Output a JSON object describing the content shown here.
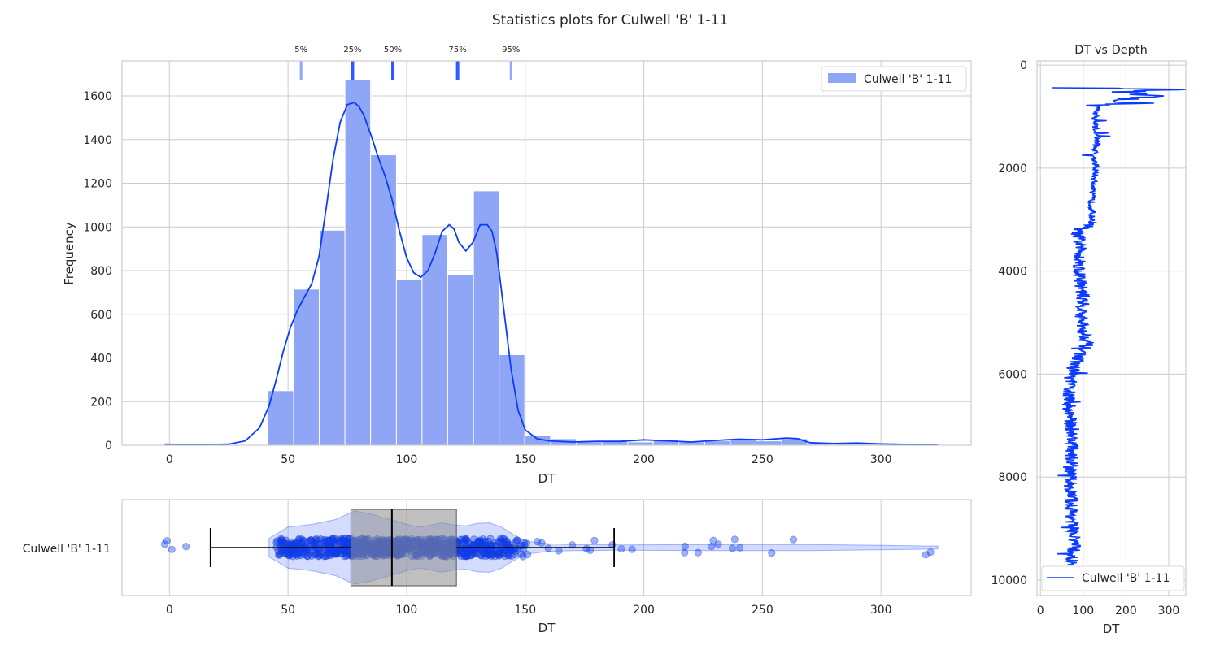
{
  "figure": {
    "title": "Statistics plots for Culwell 'B' 1-11"
  },
  "colors": {
    "main": "#0b3bff",
    "bar": "#8ea6f5",
    "grid": "#cccccc",
    "box": "#8c8c8c",
    "whisker": "#000000"
  },
  "chart_data": [
    {
      "type": "bar",
      "subtype": "histogram-with-kde",
      "xlabel": "DT",
      "ylabel": "Frequency",
      "xlim": [
        -20,
        338
      ],
      "ylim": [
        0,
        1760
      ],
      "xticks": [
        0,
        50,
        100,
        150,
        200,
        250,
        300
      ],
      "yticks": [
        0,
        200,
        400,
        600,
        800,
        1000,
        1200,
        1400,
        1600
      ],
      "legend": {
        "position": "top-right",
        "label": "Culwell 'B' 1-11"
      },
      "bins": [
        {
          "x0": 41.5,
          "x1": 52.4,
          "count": 250
        },
        {
          "x0": 52.4,
          "x1": 63.2,
          "count": 715
        },
        {
          "x0": 63.2,
          "x1": 74.0,
          "count": 985
        },
        {
          "x0": 74.0,
          "x1": 84.8,
          "count": 1675
        },
        {
          "x0": 84.8,
          "x1": 95.7,
          "count": 1330
        },
        {
          "x0": 95.7,
          "x1": 106.5,
          "count": 760
        },
        {
          "x0": 106.5,
          "x1": 117.3,
          "count": 965
        },
        {
          "x0": 117.3,
          "x1": 128.2,
          "count": 780
        },
        {
          "x0": 128.2,
          "x1": 139.0,
          "count": 1165
        },
        {
          "x0": 139.0,
          "x1": 149.8,
          "count": 415
        },
        {
          "x0": 149.8,
          "x1": 160.7,
          "count": 45
        },
        {
          "x0": 160.7,
          "x1": 171.5,
          "count": 30
        },
        {
          "x0": 171.5,
          "x1": 182.3,
          "count": 15
        },
        {
          "x0": 182.3,
          "x1": 193.2,
          "count": 20
        },
        {
          "x0": 193.2,
          "x1": 204.0,
          "count": 15
        },
        {
          "x0": 204.0,
          "x1": 214.8,
          "count": 25
        },
        {
          "x0": 214.8,
          "x1": 225.7,
          "count": 15
        },
        {
          "x0": 225.7,
          "x1": 236.5,
          "count": 20
        },
        {
          "x0": 236.5,
          "x1": 247.3,
          "count": 25
        },
        {
          "x0": 247.3,
          "x1": 258.2,
          "count": 20
        },
        {
          "x0": 258.2,
          "x1": 269.0,
          "count": 30
        },
        {
          "x0": 269.0,
          "x1": 279.8,
          "count": 5
        },
        {
          "x0": 279.8,
          "x1": 290.7,
          "count": 5
        },
        {
          "x0": 290.7,
          "x1": 301.5,
          "count": 5
        },
        {
          "x0": 301.5,
          "x1": 312.3,
          "count": 3
        },
        {
          "x0": 312.3,
          "x1": 323.2,
          "count": 3
        }
      ],
      "kde": {
        "x": [
          -2,
          10,
          25,
          32,
          38,
          42,
          45,
          48,
          51,
          54,
          57,
          60,
          63,
          66,
          69,
          72,
          75,
          78,
          80,
          82,
          85,
          88,
          91,
          94,
          97,
          100,
          103,
          106,
          109,
          112,
          115,
          118,
          120,
          122,
          125,
          128,
          131,
          134,
          136,
          138,
          141,
          144,
          147,
          150,
          155,
          160,
          170,
          180,
          190,
          200,
          210,
          220,
          230,
          240,
          250,
          260,
          265,
          270,
          280,
          290,
          300,
          310,
          324
        ],
        "y": [
          5,
          2,
          5,
          20,
          80,
          180,
          300,
          430,
          540,
          620,
          680,
          740,
          860,
          1080,
          1310,
          1480,
          1560,
          1570,
          1550,
          1510,
          1420,
          1320,
          1230,
          1120,
          980,
          860,
          790,
          770,
          800,
          880,
          980,
          1010,
          990,
          930,
          890,
          930,
          1010,
          1010,
          980,
          880,
          620,
          350,
          160,
          70,
          30,
          20,
          15,
          18,
          18,
          25,
          20,
          15,
          22,
          28,
          25,
          33,
          30,
          12,
          8,
          10,
          6,
          4,
          2
        ]
      },
      "percentiles": [
        {
          "label": "5%",
          "value": 55.5
        },
        {
          "label": "25%",
          "value": 77.2
        },
        {
          "label": "50%",
          "value": 94.2
        },
        {
          "label": "75%",
          "value": 121.5
        },
        {
          "label": "95%",
          "value": 144.0
        }
      ]
    },
    {
      "type": "scatter",
      "subtype": "box-violin-strip",
      "xlabel": "DT",
      "xlim": [
        -20,
        338
      ],
      "xticks": [
        0,
        50,
        100,
        150,
        200,
        250,
        300
      ],
      "category": "Culwell 'B' 1-11",
      "box": {
        "whisker_low": 17.3,
        "q1": 76.5,
        "median": 93.8,
        "q3": 121.0,
        "whisker_high": 187.5
      },
      "outliers_low": [
        -2,
        -1,
        1,
        7
      ],
      "violin_x": [
        42,
        50,
        60,
        70,
        78,
        85,
        90,
        95,
        100,
        105,
        110,
        115,
        120,
        125,
        130,
        135,
        140,
        145,
        150,
        160,
        170,
        190,
        230,
        270,
        300,
        324
      ],
      "violin_w": [
        0.25,
        0.55,
        0.62,
        0.75,
        0.98,
        0.9,
        0.8,
        0.72,
        0.62,
        0.55,
        0.6,
        0.66,
        0.6,
        0.58,
        0.65,
        0.66,
        0.55,
        0.35,
        0.18,
        0.1,
        0.08,
        0.07,
        0.08,
        0.08,
        0.06,
        0.04
      ]
    },
    {
      "type": "line",
      "title": "DT vs Depth",
      "xlabel": "DT",
      "xlim": [
        -8,
        340
      ],
      "ylim": [
        10300,
        -80
      ],
      "xticks": [
        0,
        100,
        200,
        300
      ],
      "yticks": [
        0,
        2000,
        4000,
        6000,
        8000,
        10000
      ],
      "legend": {
        "position": "bottom-right",
        "label": "Culwell 'B' 1-11"
      },
      "depth_range": [
        440,
        9700
      ],
      "profile": [
        {
          "depth": 440,
          "dt": 60
        },
        {
          "depth": 470,
          "dt": 320
        },
        {
          "depth": 520,
          "dt": 180
        },
        {
          "depth": 600,
          "dt": 250
        },
        {
          "depth": 680,
          "dt": 170
        },
        {
          "depth": 740,
          "dt": 230
        },
        {
          "depth": 780,
          "dt": 135
        },
        {
          "depth": 1000,
          "dt": 128
        },
        {
          "depth": 1500,
          "dt": 132
        },
        {
          "depth": 1740,
          "dt": 125
        },
        {
          "depth": 2000,
          "dt": 130
        },
        {
          "depth": 2500,
          "dt": 120
        },
        {
          "depth": 3100,
          "dt": 120
        },
        {
          "depth": 3200,
          "dt": 85
        },
        {
          "depth": 3600,
          "dt": 95
        },
        {
          "depth": 4000,
          "dt": 90
        },
        {
          "depth": 4500,
          "dt": 100
        },
        {
          "depth": 5000,
          "dt": 95
        },
        {
          "depth": 5400,
          "dt": 110
        },
        {
          "depth": 5800,
          "dt": 80
        },
        {
          "depth": 6100,
          "dt": 70
        },
        {
          "depth": 6600,
          "dt": 65
        },
        {
          "depth": 7000,
          "dt": 72
        },
        {
          "depth": 7500,
          "dt": 75
        },
        {
          "depth": 8000,
          "dt": 70
        },
        {
          "depth": 8500,
          "dt": 72
        },
        {
          "depth": 9000,
          "dt": 75
        },
        {
          "depth": 9300,
          "dt": 80
        },
        {
          "depth": 9700,
          "dt": 70
        }
      ]
    }
  ]
}
